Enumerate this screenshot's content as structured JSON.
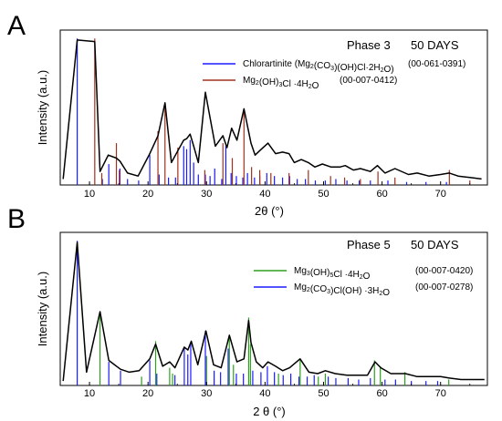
{
  "chart_data": [
    {
      "panel": "A",
      "type": "line",
      "title": "Phase 3",
      "subtitle": "50 DAYS",
      "xlabel": "2θ (°)",
      "ylabel": "Intensity (a.u.)",
      "xlim": [
        5,
        78
      ],
      "ylim": [
        0,
        100
      ],
      "xticks": [
        10,
        20,
        30,
        40,
        50,
        60,
        70
      ],
      "legend_position": "top-right",
      "grid": false,
      "series": [
        {
          "name": "Chlorartinite (Mg₂(CO₃)(OH)Cl·2H₂O)",
          "code": "(00-061-0391)",
          "color": "#1a1aff",
          "style": "sticks",
          "x": [
            7.9,
            12.2,
            13.3,
            15.2,
            16.5,
            18.4,
            20.3,
            21.9,
            23.5,
            24.7,
            26.1,
            26.6,
            27.2,
            27.8,
            28.6,
            29.8,
            30.6,
            31.4,
            32.6,
            33.3,
            34.2,
            35.1,
            36.2,
            37.0,
            38.2,
            39.1,
            40.3,
            41.6,
            43.0,
            44.2,
            45.5,
            46.9,
            48.6,
            50.3,
            52.1,
            54.0,
            56.1,
            58.0,
            61.0,
            64.2,
            67.5,
            71.0
          ],
          "y": [
            98,
            4,
            14,
            11,
            4,
            3,
            20,
            7,
            5,
            5,
            26,
            24,
            30,
            15,
            7,
            7,
            6,
            11,
            4,
            26,
            8,
            6,
            5,
            8,
            5,
            6,
            8,
            6,
            5,
            6,
            4,
            4,
            3,
            3,
            4,
            3,
            3,
            3,
            3,
            2,
            2,
            2
          ]
        },
        {
          "name": "Mg₂(OH)₃Cl ·4H₂O",
          "code": "(00-007-0412)",
          "color": "#a0301e",
          "style": "sticks",
          "x": [
            10.9,
            12.1,
            14.6,
            15.1,
            21.7,
            22.9,
            25.1,
            29.7,
            32.8,
            34.4,
            36.4,
            37.7,
            39.1,
            41.0,
            44.1,
            47.4,
            51.2,
            53.6,
            56.3,
            59.3,
            62.2,
            71.5,
            75.0
          ],
          "y": [
            98,
            8,
            28,
            10,
            36,
            55,
            25,
            10,
            28,
            18,
            50,
            12,
            10,
            8,
            8,
            10,
            6,
            5,
            4,
            9,
            5,
            10,
            3
          ]
        },
        {
          "name": "Observed pattern",
          "color": "#000000",
          "style": "line",
          "x": [
            5.5,
            7.9,
            10.9,
            11.8,
            13.2,
            14.6,
            15.2,
            16.5,
            18.3,
            20.3,
            21.7,
            22.9,
            24.0,
            25.1,
            26.1,
            26.6,
            27.2,
            27.8,
            28.6,
            29.8,
            31.5,
            32.8,
            33.5,
            34.3,
            35.2,
            36.4,
            37.6,
            38.3,
            39.1,
            40.5,
            41.8,
            43.0,
            44.1,
            45.0,
            46.2,
            47.4,
            48.5,
            49.8,
            51.3,
            52.8,
            53.7,
            55.1,
            56.3,
            58.0,
            59.2,
            60.5,
            62.2,
            64.5,
            66.0,
            68.0,
            70.0,
            71.5,
            73.0,
            75.0,
            77.0
          ],
          "y": [
            4,
            97,
            96,
            9,
            20,
            18,
            16,
            8,
            6,
            21,
            33,
            55,
            15,
            23,
            30,
            31,
            34,
            26,
            15,
            62,
            26,
            33,
            25,
            38,
            30,
            51,
            28,
            20,
            23,
            28,
            21,
            22,
            21,
            15,
            17,
            15,
            12,
            14,
            12,
            12,
            13,
            10,
            11,
            9,
            13,
            8,
            11,
            7,
            8,
            6,
            7,
            8,
            6,
            5,
            4
          ]
        }
      ]
    },
    {
      "panel": "B",
      "type": "line",
      "title": "Phase 5",
      "subtitle": "50 DAYS",
      "xlabel": "2 θ (°)",
      "ylabel": "Intensity (a.u.)",
      "xlim": [
        5,
        78
      ],
      "ylim": [
        0,
        100
      ],
      "xticks": [
        10,
        20,
        30,
        40,
        50,
        60,
        70
      ],
      "legend_position": "top-right",
      "grid": false,
      "series": [
        {
          "name": "Mg₃(OH)₅Cl ·4H₂O",
          "code": "(00-007-0420)",
          "color": "#2e9e1e",
          "style": "sticks",
          "x": [
            11.8,
            18.9,
            21.3,
            23.7,
            24.2,
            30.0,
            33.9,
            34.6,
            37.2,
            37.5,
            42.3,
            46.0,
            49.1,
            50.3,
            58.7,
            59.7,
            63.9,
            71.4
          ],
          "y": [
            50,
            6,
            30,
            12,
            8,
            20,
            34,
            14,
            46,
            28,
            8,
            18,
            6,
            8,
            17,
            13,
            9,
            4
          ]
        },
        {
          "name": "Mg₂(CO₃)Cl(OH) ·3H₂O",
          "code": "(00-007-0278)",
          "color": "#1a1aff",
          "style": "sticks",
          "x": [
            7.9,
            13.3,
            15.3,
            20.3,
            21.5,
            24.6,
            26.2,
            26.8,
            27.3,
            29.8,
            31.3,
            32.4,
            33.7,
            35.1,
            36.3,
            37.9,
            39.3,
            40.4,
            41.6,
            43.1,
            44.4,
            45.8,
            47.2,
            48.4,
            50.8,
            52.1,
            54.2,
            56.0,
            58.0,
            60.5,
            62.3,
            65.0,
            67.5,
            69.5
          ],
          "y": [
            98,
            16,
            10,
            17,
            8,
            7,
            26,
            21,
            29,
            37,
            10,
            9,
            25,
            8,
            8,
            10,
            9,
            13,
            9,
            7,
            8,
            6,
            6,
            7,
            6,
            5,
            5,
            4,
            5,
            4,
            4,
            3,
            3,
            3
          ]
        },
        {
          "name": "Observed pattern",
          "color": "#000000",
          "style": "line",
          "x": [
            5.5,
            7.9,
            9.5,
            11.8,
            13.3,
            15.3,
            16.8,
            18.5,
            20.3,
            21.3,
            22.5,
            23.7,
            24.6,
            26.2,
            26.8,
            27.4,
            28.5,
            29.9,
            31.2,
            32.5,
            33.9,
            35.2,
            36.4,
            37.2,
            37.6,
            38.5,
            39.6,
            40.5,
            41.8,
            43.0,
            44.2,
            46.0,
            47.5,
            49.0,
            50.3,
            52.0,
            54.0,
            56.0,
            57.5,
            58.8,
            59.8,
            61.5,
            64.0,
            66.0,
            68.0,
            70.0,
            71.5,
            73.5,
            75.5,
            77.5
          ],
          "y": [
            3,
            97,
            9,
            50,
            17,
            11,
            9,
            10,
            18,
            28,
            13,
            16,
            12,
            26,
            24,
            30,
            14,
            37,
            14,
            12,
            34,
            16,
            18,
            44,
            29,
            16,
            12,
            16,
            13,
            10,
            12,
            18,
            9,
            8,
            10,
            8,
            7,
            7,
            7,
            16,
            12,
            8,
            8,
            6,
            6,
            6,
            5,
            4,
            4,
            4
          ]
        }
      ]
    }
  ]
}
